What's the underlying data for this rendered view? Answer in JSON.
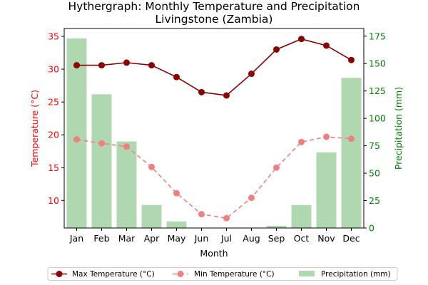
{
  "chart_data": {
    "type": "bar+line",
    "title_line1": "Hythergraph: Monthly Temperature and Precipitation",
    "title_line2": "Livingstone (Zambia)",
    "xlabel": "Month",
    "ylabel_left": "Temperature (°C)",
    "ylabel_right": "Precipitation (mm)",
    "categories": [
      "Jan",
      "Feb",
      "Mar",
      "Apr",
      "May",
      "Jun",
      "Jul",
      "Aug",
      "Sep",
      "Oct",
      "Nov",
      "Dec"
    ],
    "ylim_left": [
      5.8,
      36.2
    ],
    "ylim_right": [
      0,
      182
    ],
    "yticks_left": [
      10,
      15,
      20,
      25,
      30,
      35
    ],
    "yticks_right": [
      0,
      25,
      50,
      75,
      100,
      125,
      150,
      175
    ],
    "series": [
      {
        "name": "Max Temperature (°C)",
        "axis": "left",
        "style": "line",
        "color": "#8b0000",
        "dash": "",
        "values": [
          30.6,
          30.6,
          31.0,
          30.6,
          28.8,
          26.5,
          26.0,
          29.3,
          33.0,
          34.6,
          33.6,
          31.4
        ]
      },
      {
        "name": "Min Temperature (°C)",
        "axis": "left",
        "style": "line",
        "color": "#f08080",
        "dash": "6 4",
        "values": [
          19.3,
          18.7,
          18.2,
          15.1,
          11.1,
          7.9,
          7.3,
          10.4,
          15.0,
          18.9,
          19.7,
          19.4
        ]
      },
      {
        "name": "Precipitation (mm)",
        "axis": "right",
        "style": "bar",
        "color": "#b0d8b0",
        "values": [
          173,
          122,
          79,
          21,
          6,
          0,
          0,
          0,
          2,
          21,
          69,
          137
        ]
      }
    ],
    "colors": {
      "left_axis": "#ff0000",
      "right_axis": "#008000"
    },
    "legend_position": "bottom-center",
    "grid": false
  }
}
